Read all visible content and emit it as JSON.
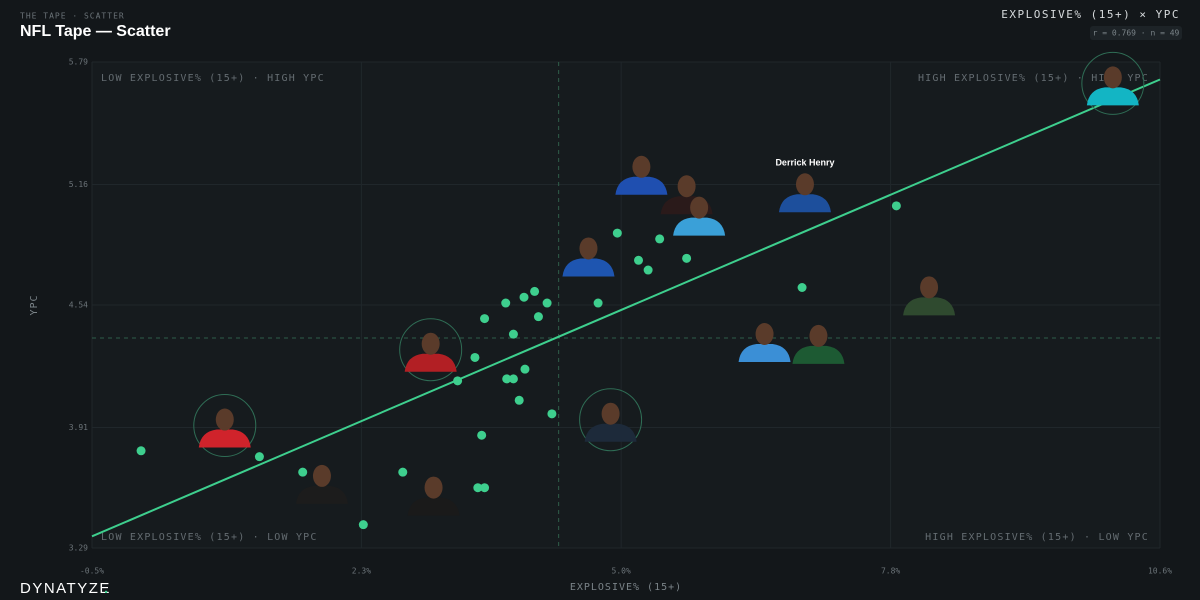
{
  "header": {
    "kicker": "THE TAPE · SCATTER",
    "title": "NFL Tape — Scatter",
    "metric": "EXPLOSIVE% (15+) × YPC",
    "stats": "r = 0.769 · n = 49"
  },
  "brand": {
    "name": "DYNATYZE",
    "dot": "."
  },
  "chart_data": {
    "type": "scatter",
    "x_label": "EXPLOSIVE% (15+)",
    "y_label": "YPC",
    "quadrants": {
      "top_left": "LOW EXPLOSIVE% (15+) · HIGH YPC",
      "top_right": "HIGH EXPLOSIVE% (15+) · HIGH YPC",
      "bottom_left": "LOW EXPLOSIVE% (15+) · LOW YPC",
      "bottom_right": "HIGH EXPLOSIVE% (15+) · LOW YPC"
    },
    "xlim": [
      -0.5,
      10.6
    ],
    "ylim": [
      3.29,
      5.79
    ],
    "xticks": [
      {
        "value": -0.5,
        "label": "-0.5%"
      },
      {
        "value": 2.3,
        "label": "2.3%"
      },
      {
        "value": 5.0,
        "label": "5.0%"
      },
      {
        "value": 7.8,
        "label": "7.8%"
      },
      {
        "value": 10.6,
        "label": "10.6%"
      }
    ],
    "yticks": [
      3.29,
      3.91,
      4.54,
      5.16,
      5.79
    ],
    "grid": true,
    "point_color": "#3ecf8e",
    "trend_color": "#3ecf8e",
    "mean": {
      "x": 4.35,
      "y": 4.37
    },
    "trend": {
      "x": [
        -0.5,
        10.6
      ],
      "y": [
        3.35,
        5.7
      ]
    },
    "points": {
      "x": [
        0.01,
        1.24,
        1.69,
        2.32,
        2.73,
        3.3,
        3.48,
        3.51,
        3.58,
        3.55,
        3.58,
        3.8,
        3.81,
        3.88,
        3.88,
        3.94,
        3.99,
        4.0,
        4.1,
        4.14,
        4.23,
        4.28,
        4.76,
        4.96,
        5.18,
        5.28,
        5.4,
        5.68,
        6.88,
        7.86
      ],
      "y": [
        3.79,
        3.76,
        3.68,
        3.41,
        3.68,
        4.15,
        4.27,
        3.6,
        3.6,
        3.87,
        4.47,
        4.55,
        4.16,
        4.16,
        4.39,
        4.05,
        4.58,
        4.21,
        4.61,
        4.48,
        4.55,
        3.98,
        4.55,
        4.91,
        4.77,
        4.72,
        4.88,
        4.78,
        4.63,
        5.05
      ]
    },
    "photos": [
      {
        "x": 10.11,
        "y": 5.68,
        "color": "#13b5c4",
        "ringed": true
      },
      {
        "x": 6.91,
        "y": 5.13,
        "color": "#1d4f9c",
        "label": "Derrick Henry"
      },
      {
        "x": 5.21,
        "y": 5.22,
        "color": "#1f4fb0"
      },
      {
        "x": 5.68,
        "y": 5.12,
        "color": "#2a1a1a"
      },
      {
        "x": 5.81,
        "y": 5.01,
        "color": "#3aa0d8"
      },
      {
        "x": 4.66,
        "y": 4.8,
        "color": "#1e55b0"
      },
      {
        "x": 8.2,
        "y": 4.6,
        "color": "#2f4a2f"
      },
      {
        "x": 6.49,
        "y": 4.36,
        "color": "#3b8fd6"
      },
      {
        "x": 7.05,
        "y": 4.35,
        "color": "#1d5a33"
      },
      {
        "x": 3.02,
        "y": 4.31,
        "color": "#b21f24",
        "ringed": true
      },
      {
        "x": 4.89,
        "y": 3.95,
        "color": "#1d2a3a",
        "ringed": true
      },
      {
        "x": 0.88,
        "y": 3.92,
        "color": "#d0232b",
        "ringed": true
      },
      {
        "x": 1.89,
        "y": 3.63,
        "color": "#1c1c1c"
      },
      {
        "x": 3.05,
        "y": 3.57,
        "color": "#1a1a1a"
      }
    ]
  }
}
